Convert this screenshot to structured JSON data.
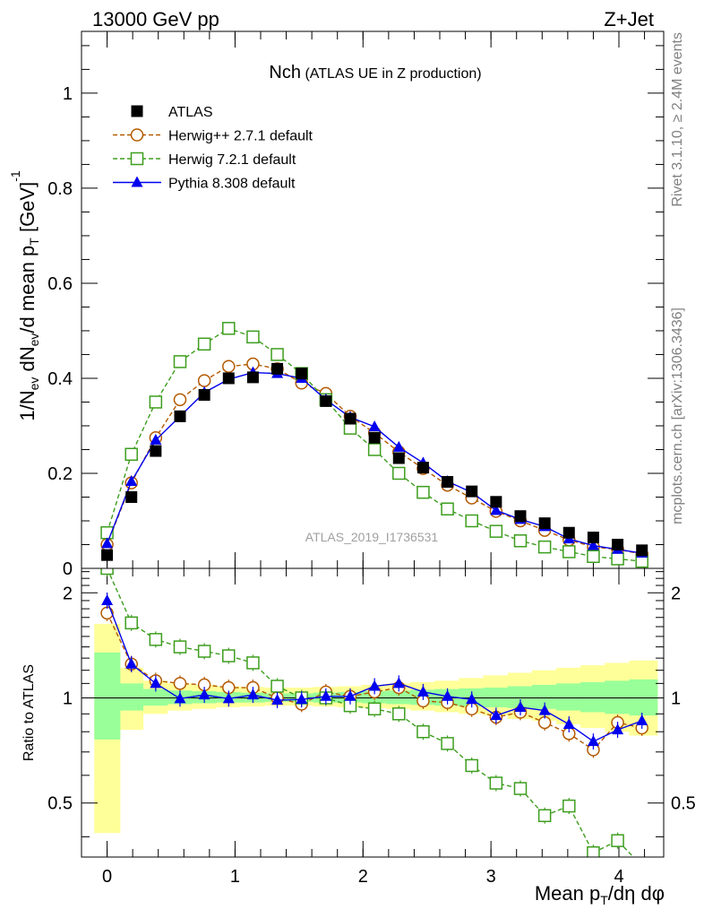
{
  "header": {
    "left": "13000 GeV pp",
    "right": "Z+Jet"
  },
  "side_labels": {
    "rivet": "Rivet 3.1.10, ≥ 2.4M events",
    "mcplots": "mcplots.cern.ch [arXiv:1306.3436]"
  },
  "main_title": {
    "main": "Nch",
    "sub": "(ATLAS UE in Z production)"
  },
  "watermark": "ATLAS_2019_I1736531",
  "ratio_ylabel": "Ratio to ATLAS",
  "colors": {
    "atlas": "#000000",
    "herwigpp": "#b35900",
    "herwig7": "#3d9e1e",
    "pythia": "#0000ee",
    "band_inner": "#99ff99",
    "band_outer": "#ffff99"
  },
  "chart_data": [
    {
      "type": "scatter",
      "ylabel_parts": [
        "1/N",
        "ev",
        " dN",
        "ev",
        "/d mean p",
        "T",
        " [GeV]",
        "-1"
      ],
      "xlabel_parts": [
        "Mean p",
        "T",
        "/dη dφ"
      ],
      "xlim": [
        -0.2,
        4.35
      ],
      "ylim": [
        0,
        1.13
      ],
      "xticks": [
        0,
        1,
        2,
        3,
        4
      ],
      "yticks": [
        0,
        0.2,
        0.4,
        0.6,
        0.8,
        1
      ],
      "legend_position": "top-left",
      "x": [
        0,
        0.19,
        0.38,
        0.57,
        0.76,
        0.95,
        1.14,
        1.33,
        1.52,
        1.71,
        1.9,
        2.09,
        2.28,
        2.47,
        2.66,
        2.85,
        3.04,
        3.23,
        3.42,
        3.61,
        3.8,
        3.99,
        4.18
      ],
      "series": [
        {
          "name": "ATLAS",
          "marker": "square-filled",
          "values": [
            0.028,
            0.15,
            0.247,
            0.32,
            0.365,
            0.4,
            0.402,
            0.42,
            0.41,
            0.352,
            0.315,
            0.275,
            0.232,
            0.212,
            0.182,
            0.162,
            0.14,
            0.11,
            0.095,
            0.075,
            0.065,
            0.05,
            0.038
          ]
        },
        {
          "name": "Herwig++ 2.7.1 default",
          "marker": "circle-open",
          "dashed": true,
          "values": [
            0.05,
            0.18,
            0.275,
            0.355,
            0.395,
            0.425,
            0.43,
            0.42,
            0.39,
            0.368,
            0.32,
            0.285,
            0.245,
            0.21,
            0.175,
            0.148,
            0.12,
            0.1,
            0.08,
            0.06,
            0.045,
            0.04,
            0.03
          ]
        },
        {
          "name": "Herwig 7.2.1 default",
          "marker": "square-open",
          "dashed": true,
          "values": [
            0.075,
            0.24,
            0.35,
            0.435,
            0.472,
            0.505,
            0.487,
            0.45,
            0.41,
            0.355,
            0.295,
            0.25,
            0.2,
            0.16,
            0.125,
            0.1,
            0.078,
            0.058,
            0.045,
            0.035,
            0.025,
            0.02,
            0.015
          ]
        },
        {
          "name": "Pythia 8.308 default",
          "marker": "triangle-filled",
          "dashed": false,
          "values": [
            0.052,
            0.183,
            0.27,
            0.32,
            0.37,
            0.398,
            0.412,
            0.41,
            0.4,
            0.355,
            0.318,
            0.298,
            0.255,
            0.222,
            0.183,
            0.16,
            0.122,
            0.103,
            0.088,
            0.062,
            0.048,
            0.04,
            0.032
          ]
        }
      ]
    },
    {
      "type": "scatter",
      "ylabel": "Ratio to ATLAS",
      "xlabel_parts": [
        "Mean p",
        "T",
        "/dη dφ"
      ],
      "xlim": [
        -0.2,
        4.35
      ],
      "ylim": [
        0.35,
        2.35
      ],
      "log_y": true,
      "xticks": [
        0,
        1,
        2,
        3,
        4
      ],
      "yticks": [
        0.5,
        1,
        2
      ],
      "reference_line": 1,
      "x": [
        0,
        0.19,
        0.38,
        0.57,
        0.76,
        0.95,
        1.14,
        1.33,
        1.52,
        1.71,
        1.9,
        2.09,
        2.28,
        2.47,
        2.66,
        2.85,
        3.04,
        3.23,
        3.42,
        3.61,
        3.8,
        3.99,
        4.18
      ],
      "bands": {
        "edges": [
          -0.1,
          0.1,
          0.28,
          0.47,
          0.66,
          0.85,
          1.04,
          1.23,
          1.42,
          1.61,
          1.8,
          1.99,
          2.18,
          2.37,
          2.56,
          2.75,
          2.94,
          3.13,
          3.32,
          3.51,
          3.7,
          3.89,
          4.08,
          4.3
        ],
        "inner": [
          [
            0.76,
            1.35
          ],
          [
            0.92,
            1.1
          ],
          [
            0.95,
            1.06
          ],
          [
            0.96,
            1.05
          ],
          [
            0.965,
            1.045
          ],
          [
            0.97,
            1.04
          ],
          [
            0.97,
            1.035
          ],
          [
            0.975,
            1.03
          ],
          [
            0.975,
            1.03
          ],
          [
            0.97,
            1.035
          ],
          [
            0.97,
            1.04
          ],
          [
            0.965,
            1.045
          ],
          [
            0.96,
            1.05
          ],
          [
            0.955,
            1.055
          ],
          [
            0.95,
            1.06
          ],
          [
            0.945,
            1.065
          ],
          [
            0.94,
            1.07
          ],
          [
            0.935,
            1.08
          ],
          [
            0.93,
            1.09
          ],
          [
            0.92,
            1.1
          ],
          [
            0.91,
            1.11
          ],
          [
            0.9,
            1.12
          ],
          [
            0.89,
            1.13
          ]
        ],
        "outer": [
          [
            0.41,
            1.63
          ],
          [
            0.81,
            1.22
          ],
          [
            0.9,
            1.12
          ],
          [
            0.92,
            1.1
          ],
          [
            0.93,
            1.09
          ],
          [
            0.94,
            1.08
          ],
          [
            0.945,
            1.075
          ],
          [
            0.95,
            1.07
          ],
          [
            0.95,
            1.07
          ],
          [
            0.945,
            1.075
          ],
          [
            0.94,
            1.08
          ],
          [
            0.935,
            1.09
          ],
          [
            0.93,
            1.1
          ],
          [
            0.92,
            1.11
          ],
          [
            0.91,
            1.12
          ],
          [
            0.9,
            1.14
          ],
          [
            0.89,
            1.16
          ],
          [
            0.87,
            1.18
          ],
          [
            0.86,
            1.2
          ],
          [
            0.84,
            1.22
          ],
          [
            0.82,
            1.24
          ],
          [
            0.8,
            1.26
          ],
          [
            0.78,
            1.28
          ]
        ]
      },
      "series": [
        {
          "name": "Herwig++ 2.7.1 default",
          "values": [
            1.75,
            1.25,
            1.12,
            1.1,
            1.09,
            1.07,
            1.07,
            1.0,
            0.96,
            1.04,
            1.01,
            1.04,
            1.07,
            0.98,
            0.97,
            0.93,
            0.88,
            0.91,
            0.85,
            0.79,
            0.71,
            0.85,
            0.82
          ]
        },
        {
          "name": "Herwig 7.2.1 default",
          "values": [
            2.35,
            1.64,
            1.47,
            1.4,
            1.36,
            1.32,
            1.26,
            1.08,
            1.0,
            1.0,
            0.95,
            0.93,
            0.9,
            0.8,
            0.74,
            0.64,
            0.57,
            0.55,
            0.46,
            0.49,
            0.36,
            0.39,
            0.33
          ]
        },
        {
          "name": "Pythia 8.308 default",
          "values": [
            1.9,
            1.25,
            1.1,
            0.995,
            1.02,
            0.995,
            1.02,
            0.985,
            0.99,
            1.01,
            1.01,
            1.08,
            1.1,
            1.04,
            1.01,
            0.99,
            0.89,
            0.94,
            0.92,
            0.84,
            0.75,
            0.81,
            0.86
          ]
        }
      ]
    }
  ]
}
